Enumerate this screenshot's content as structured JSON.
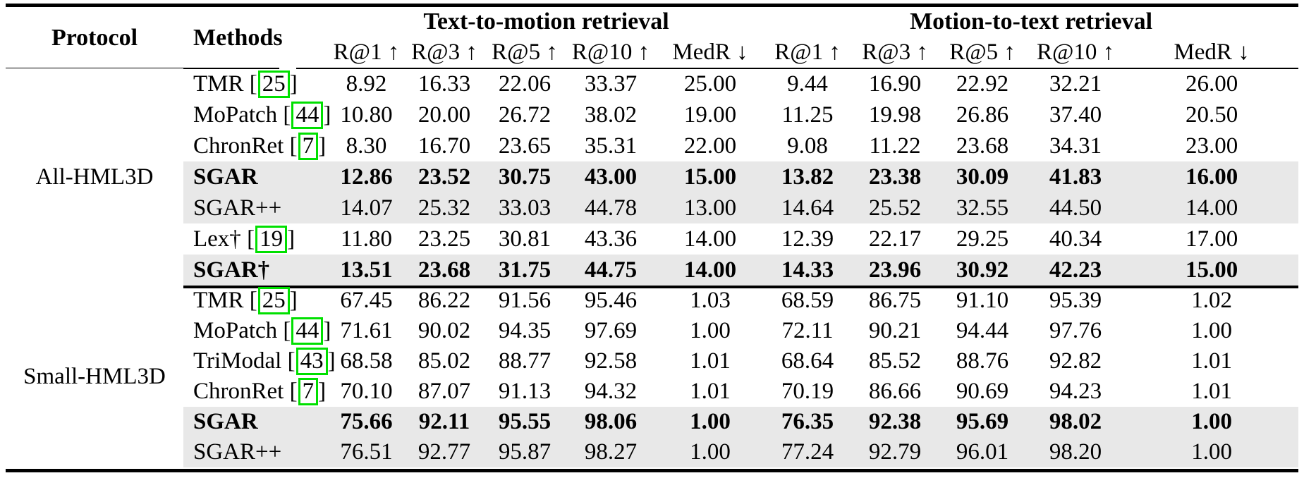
{
  "styles": {
    "highlight_row_bg": "#e8e8e8",
    "citation_box_color": "#00e000",
    "rule_color": "#000000"
  },
  "table": {
    "protocol_header": "Protocol",
    "methods_header": "Methods",
    "groups": [
      {
        "title": "Text-to-motion retrieval",
        "metrics": [
          "R@1 ↑",
          "R@3 ↑",
          "R@5 ↑",
          "R@10 ↑",
          "MedR ↓"
        ]
      },
      {
        "title": "Motion-to-text retrieval",
        "metrics": [
          "R@1 ↑",
          "R@3 ↑",
          "R@5 ↑",
          "R@10 ↑",
          "MedR ↓"
        ]
      }
    ],
    "sections": [
      {
        "protocol": "All-HML3D",
        "rows": [
          {
            "method": "TMR",
            "cite": "25",
            "bold": false,
            "shaded": false,
            "t2m": [
              "8.92",
              "16.33",
              "22.06",
              "33.37",
              "25.00"
            ],
            "m2t": [
              "9.44",
              "16.90",
              "22.92",
              "32.21",
              "26.00"
            ]
          },
          {
            "method": "MoPatch",
            "cite": "44",
            "bold": false,
            "shaded": false,
            "t2m": [
              "10.80",
              "20.00",
              "26.72",
              "38.02",
              "19.00"
            ],
            "m2t": [
              "11.25",
              "19.98",
              "26.86",
              "37.40",
              "20.50"
            ]
          },
          {
            "method": "ChronRet",
            "cite": "7",
            "bold": false,
            "shaded": false,
            "t2m": [
              "8.30",
              "16.70",
              "23.65",
              "35.31",
              "22.00"
            ],
            "m2t": [
              "9.08",
              "11.22",
              "23.68",
              "34.31",
              "23.00"
            ]
          },
          {
            "method": "SGAR",
            "cite": null,
            "bold": true,
            "shaded": true,
            "t2m": [
              "12.86",
              "23.52",
              "30.75",
              "43.00",
              "15.00"
            ],
            "m2t": [
              "13.82",
              "23.38",
              "30.09",
              "41.83",
              "16.00"
            ]
          },
          {
            "method": "SGAR++",
            "cite": null,
            "bold": false,
            "shaded": true,
            "t2m": [
              "14.07",
              "25.32",
              "33.03",
              "44.78",
              "13.00"
            ],
            "m2t": [
              "14.64",
              "25.52",
              "32.55",
              "44.50",
              "14.00"
            ]
          },
          {
            "method": "Lex†",
            "cite": "19",
            "bold": false,
            "shaded": false,
            "t2m": [
              "11.80",
              "23.25",
              "30.81",
              "43.36",
              "14.00"
            ],
            "m2t": [
              "12.39",
              "22.17",
              "29.25",
              "40.34",
              "17.00"
            ]
          },
          {
            "method": "SGAR†",
            "cite": null,
            "bold": true,
            "shaded": true,
            "t2m": [
              "13.51",
              "23.68",
              "31.75",
              "44.75",
              "14.00"
            ],
            "m2t": [
              "14.33",
              "23.96",
              "30.92",
              "42.23",
              "15.00"
            ]
          }
        ]
      },
      {
        "protocol": "Small-HML3D",
        "rows": [
          {
            "method": "TMR",
            "cite": "25",
            "bold": false,
            "shaded": false,
            "t2m": [
              "67.45",
              "86.22",
              "91.56",
              "95.46",
              "1.03"
            ],
            "m2t": [
              "68.59",
              "86.75",
              "91.10",
              "95.39",
              "1.02"
            ]
          },
          {
            "method": "MoPatch",
            "cite": "44",
            "bold": false,
            "shaded": false,
            "t2m": [
              "71.61",
              "90.02",
              "94.35",
              "97.69",
              "1.00"
            ],
            "m2t": [
              "72.11",
              "90.21",
              "94.44",
              "97.76",
              "1.00"
            ]
          },
          {
            "method": "TriModal",
            "cite": "43",
            "bold": false,
            "shaded": false,
            "t2m": [
              "68.58",
              "85.02",
              "88.77",
              "92.58",
              "1.01"
            ],
            "m2t": [
              "68.64",
              "85.52",
              "88.76",
              "92.82",
              "1.01"
            ]
          },
          {
            "method": "ChronRet",
            "cite": "7",
            "bold": false,
            "shaded": false,
            "t2m": [
              "70.10",
              "87.07",
              "91.13",
              "94.32",
              "1.01"
            ],
            "m2t": [
              "70.19",
              "86.66",
              "90.69",
              "94.23",
              "1.01"
            ]
          },
          {
            "method": "SGAR",
            "cite": null,
            "bold": true,
            "shaded": true,
            "t2m": [
              "75.66",
              "92.11",
              "95.55",
              "98.06",
              "1.00"
            ],
            "m2t": [
              "76.35",
              "92.38",
              "95.69",
              "98.02",
              "1.00"
            ]
          },
          {
            "method": "SGAR++",
            "cite": null,
            "bold": false,
            "shaded": true,
            "t2m": [
              "76.51",
              "92.77",
              "95.87",
              "98.27",
              "1.00"
            ],
            "m2t": [
              "77.24",
              "92.79",
              "96.01",
              "98.20",
              "1.00"
            ]
          }
        ]
      }
    ]
  }
}
